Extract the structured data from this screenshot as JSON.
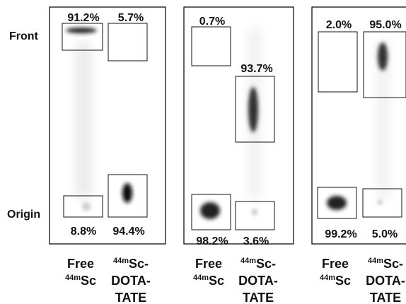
{
  "row_labels": {
    "front": "Front",
    "origin": "Origin"
  },
  "panels": [
    {
      "top_left": "91.2%",
      "top_right": "5.7%",
      "bottom_left": "8.8%",
      "bottom_right": "94.4%",
      "left_label": {
        "line1": "Free",
        "sup": "44m",
        "base": "Sc"
      },
      "right_label": {
        "sup": "44m",
        "base": "Sc-",
        "line2": "DOTA-",
        "line3": "TATE"
      }
    },
    {
      "top_left": "0.7%",
      "top_right": "93.7%",
      "bottom_left": "98.2%",
      "bottom_right": "3.6%",
      "left_label": {
        "line1": "Free",
        "sup": "44m",
        "base": "Sc"
      },
      "right_label": {
        "sup": "44m",
        "base": "Sc-",
        "line2": "DOTA-",
        "line3": "TATE"
      }
    },
    {
      "top_left": "2.0%",
      "top_right": "95.0%",
      "bottom_left": "99.2%",
      "bottom_right": "5.0%",
      "left_label": {
        "line1": "Free",
        "sup": "44m",
        "base": "Sc"
      },
      "right_label": {
        "sup": "44m",
        "base": "Sc-",
        "line2": "DOTA-",
        "line3": "TATE"
      }
    }
  ]
}
